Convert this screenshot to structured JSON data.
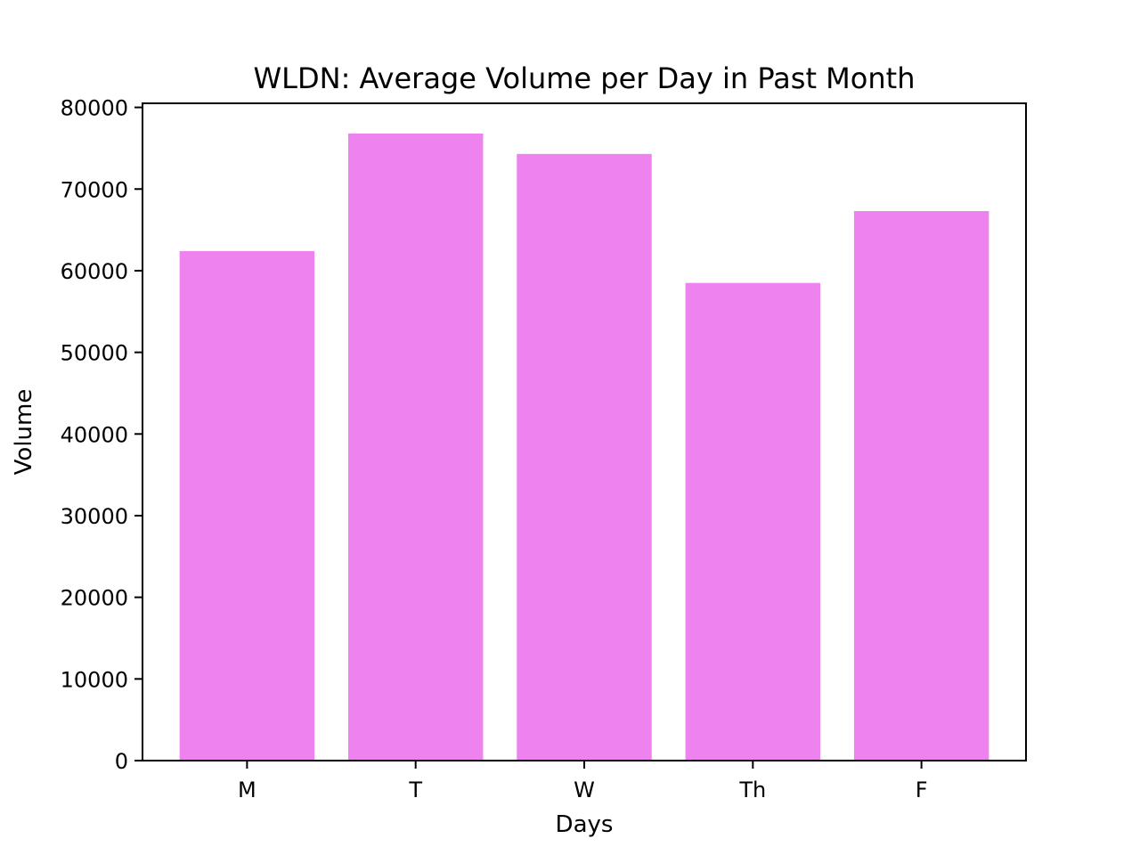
{
  "chart_data": {
    "type": "bar",
    "title": "WLDN: Average Volume per Day in Past Month",
    "xlabel": "Days",
    "ylabel": "Volume",
    "categories": [
      "M",
      "T",
      "W",
      "Th",
      "F"
    ],
    "values": [
      62400,
      76800,
      74300,
      58500,
      67300
    ],
    "ylim": [
      0,
      80500
    ],
    "yticks": [
      0,
      10000,
      20000,
      30000,
      40000,
      50000,
      60000,
      70000,
      80000
    ],
    "ytick_labels": [
      "0",
      "10000",
      "20000",
      "30000",
      "40000",
      "50000",
      "60000",
      "70000",
      "80000"
    ],
    "bar_color": "#ee82ee",
    "grid": false,
    "legend": "none"
  }
}
